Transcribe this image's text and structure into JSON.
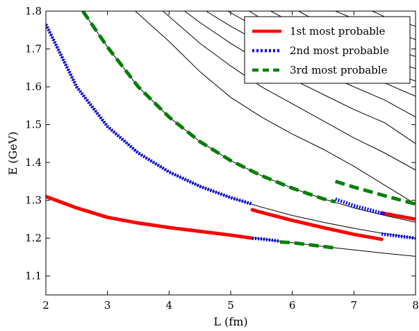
{
  "chart_data": {
    "type": "line",
    "xlabel": "L (fm)",
    "ylabel": "E (GeV)",
    "xlim": [
      2,
      8
    ],
    "ylim": [
      1.05,
      1.8
    ],
    "x_ticks": [
      2,
      3,
      4,
      5,
      6,
      7,
      8
    ],
    "x_tick_labels": [
      "2",
      "3",
      "4",
      "5",
      "6",
      "7",
      "8"
    ],
    "y_ticks": [
      1.1,
      1.2,
      1.3,
      1.4,
      1.5,
      1.6,
      1.7,
      1.8
    ],
    "y_tick_labels": [
      "1.1",
      "1.2",
      "1.3",
      "1.4",
      "1.5",
      "1.6",
      "1.7",
      "1.8"
    ],
    "grid": false,
    "legend_position": "top-right",
    "energy_levels": [
      {
        "x": [
          2,
          2.5,
          3,
          3.5,
          4,
          4.5,
          5,
          5.5,
          6,
          6.5,
          7,
          7.5,
          8
        ],
        "y": [
          1.31,
          1.28,
          1.255,
          1.24,
          1.228,
          1.218,
          1.208,
          1.198,
          1.188,
          1.178,
          1.169,
          1.16,
          1.152
        ]
      },
      {
        "x": [
          2,
          2.5,
          3,
          3.5,
          4,
          4.5,
          5,
          5.5,
          6,
          6.5,
          7,
          7.5,
          8
        ],
        "y": [
          1.765,
          1.6,
          1.495,
          1.425,
          1.375,
          1.337,
          1.307,
          1.282,
          1.26,
          1.242,
          1.226,
          1.212,
          1.2
        ]
      },
      {
        "x": [
          2.6,
          3,
          3.5,
          4,
          4.5,
          5,
          5.5,
          6,
          6.5,
          7,
          7.5,
          8
        ],
        "y": [
          1.8,
          1.705,
          1.6,
          1.52,
          1.455,
          1.405,
          1.365,
          1.332,
          1.304,
          1.28,
          1.26,
          1.242
        ]
      },
      {
        "x": [
          3.45,
          4,
          4.5,
          5,
          5.5,
          6,
          6.5,
          7,
          7.5,
          8
        ],
        "y": [
          1.8,
          1.72,
          1.64,
          1.572,
          1.52,
          1.475,
          1.435,
          1.39,
          1.34,
          1.29
        ]
      },
      {
        "x": [
          3.9,
          4.5,
          5,
          5.5,
          6,
          6.5,
          7,
          7.5,
          8
        ],
        "y": [
          1.8,
          1.715,
          1.655,
          1.6,
          1.555,
          1.51,
          1.465,
          1.425,
          1.38
        ]
      },
      {
        "x": [
          4.25,
          4.5,
          5,
          5.5,
          6,
          6.5,
          7,
          7.5,
          8
        ],
        "y": [
          1.8,
          1.77,
          1.715,
          1.665,
          1.62,
          1.58,
          1.54,
          1.505,
          1.45
        ]
      },
      {
        "x": [
          4.6,
          5,
          5.5,
          6,
          6.5,
          7,
          7.5,
          8
        ],
        "y": [
          1.8,
          1.76,
          1.715,
          1.675,
          1.635,
          1.6,
          1.565,
          1.52
        ]
      },
      {
        "x": [
          4.95,
          5.5,
          6,
          6.5,
          7,
          7.5,
          8
        ],
        "y": [
          1.8,
          1.75,
          1.71,
          1.675,
          1.64,
          1.61,
          1.575
        ]
      },
      {
        "x": [
          5.3,
          5.5,
          6,
          6.5,
          7,
          7.5,
          8
        ],
        "y": [
          1.8,
          1.78,
          1.74,
          1.705,
          1.675,
          1.645,
          1.615
        ]
      },
      {
        "x": [
          5.65,
          6,
          6.5,
          7,
          7.5,
          8
        ],
        "y": [
          1.8,
          1.77,
          1.735,
          1.705,
          1.675,
          1.648
        ]
      },
      {
        "x": [
          6.1,
          6.5,
          7,
          7.5,
          8
        ],
        "y": [
          1.8,
          1.765,
          1.735,
          1.705,
          1.68
        ]
      },
      {
        "x": [
          6.7,
          7,
          7.5,
          8
        ],
        "y": [
          1.8,
          1.78,
          1.752,
          1.725
        ]
      },
      {
        "x": [
          7.3,
          7.5,
          8
        ],
        "y": [
          1.8,
          1.785,
          1.76
        ]
      }
    ],
    "series": [
      {
        "name": "1st most probable",
        "color": "#ff0000",
        "style": "solid",
        "segments": [
          {
            "x": [
              2,
              2.5,
              3,
              3.5,
              4,
              4.5,
              5,
              5.35
            ],
            "y": [
              1.31,
              1.28,
              1.255,
              1.24,
              1.228,
              1.218,
              1.208,
              1.2
            ]
          },
          {
            "x": [
              5.35,
              5.5,
              6,
              6.5,
              7,
              7.45
            ],
            "y": [
              1.275,
              1.268,
              1.247,
              1.228,
              1.21,
              1.197
            ]
          },
          {
            "x": [
              7.45,
              7.5,
              8
            ],
            "y": [
              1.267,
              1.265,
              1.25
            ]
          }
        ]
      },
      {
        "name": "2nd most probable",
        "color": "#0000ff",
        "style": "dotted",
        "segments": [
          {
            "x": [
              2,
              2.5,
              3,
              3.5,
              4,
              4.5,
              5,
              5.35
            ],
            "y": [
              1.765,
              1.6,
              1.495,
              1.425,
              1.375,
              1.337,
              1.307,
              1.29
            ]
          },
          {
            "x": [
              5.35,
              5.5,
              5.8
            ],
            "y": [
              1.2,
              1.198,
              1.192
            ]
          },
          {
            "x": [
              6.7,
              7,
              7.5,
              7.45
            ],
            "y": [
              1.303,
              1.286,
              1.264,
              1.267
            ]
          },
          {
            "x": [
              7.45,
              8
            ],
            "y": [
              1.211,
              1.2
            ]
          }
        ]
      },
      {
        "name": "3rd most probable",
        "color": "#008000",
        "style": "dashed",
        "segments": [
          {
            "x": [
              2.6,
              3,
              3.5,
              4,
              4.5,
              5,
              5.5,
              6,
              6.5,
              6.7
            ],
            "y": [
              1.8,
              1.705,
              1.6,
              1.52,
              1.455,
              1.405,
              1.365,
              1.332,
              1.304,
              1.296
            ]
          },
          {
            "x": [
              5.8,
              6,
              6.5,
              6.7
            ],
            "y": [
              1.19,
              1.188,
              1.178,
              1.174
            ]
          },
          {
            "x": [
              6.7,
              7,
              7.5,
              8
            ],
            "y": [
              1.35,
              1.335,
              1.312,
              1.29
            ]
          }
        ]
      }
    ]
  }
}
